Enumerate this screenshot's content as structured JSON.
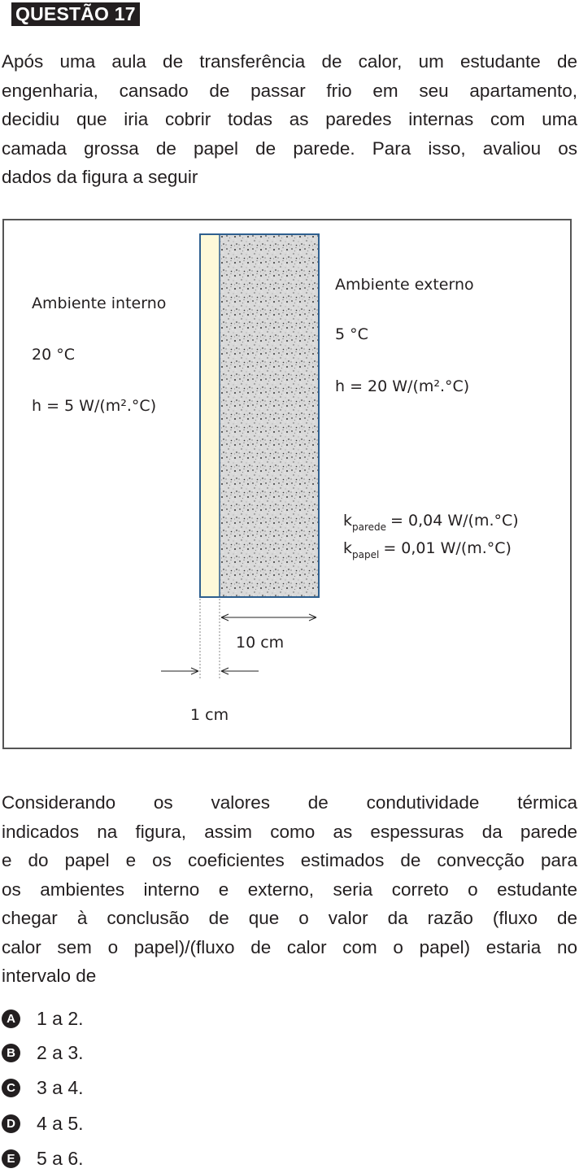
{
  "question": {
    "label": "QUESTÃO 17",
    "intro_lines": [
      "Após uma aula de transferência de calor, um estudante de",
      "engenharia, cansado de passar frio em seu apartamento,",
      "decidiu que iria cobrir todas as paredes internas com uma",
      "camada grossa de papel de parede. Para isso, avaliou os",
      "dados da figura a seguir"
    ],
    "statement_lines": [
      "Considerando os valores de condutividade térmica",
      "indicados na figura, assim como as espessuras da parede",
      "e do papel e os coeficientes estimados de convecção para",
      "os ambientes interno e externo, seria correto o estudante",
      "chegar à conclusão de que o valor da razão (fluxo de",
      "calor sem o papel)/(fluxo de calor com o papel) estaria no",
      "intervalo de"
    ]
  },
  "figure": {
    "internal": {
      "title": "Ambiente interno",
      "temp": "20 °C",
      "h": "h = 5 W/(m².°C)"
    },
    "external": {
      "title": "Ambiente externo",
      "temp": "5 °C",
      "h": "h = 20 W/(m².°C)"
    },
    "k_wall": {
      "symbol": "k",
      "sub": "parede",
      "value": "= 0,04 W/(m.°C)"
    },
    "k_paper": {
      "symbol": "k",
      "sub": "papel",
      "value": "= 0,01 W/(m.°C)"
    },
    "dim_wall": "10 cm",
    "dim_paper": "1 cm",
    "colors": {
      "paper": "#fdf9d9",
      "border": "#2e5f8f"
    }
  },
  "options": [
    {
      "letter": "A",
      "text": "1 a 2."
    },
    {
      "letter": "B",
      "text": "2 a 3."
    },
    {
      "letter": "C",
      "text": "3 a 4."
    },
    {
      "letter": "D",
      "text": "4 a 5."
    },
    {
      "letter": "E",
      "text": "5 a 6."
    }
  ]
}
